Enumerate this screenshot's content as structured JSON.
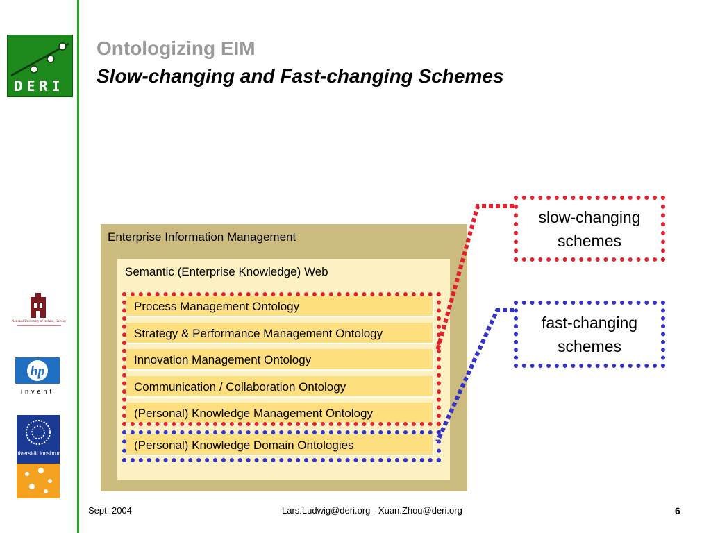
{
  "slide": {
    "title": "Ontologizing EIM",
    "subtitle": "Slow-changing and Fast-changing Schemes"
  },
  "logos": {
    "deri": "DERI",
    "nuig": "National University of Ireland, Galway",
    "hp_word": "invent",
    "hp_mark": "hp",
    "uibk": "universität innsbruck"
  },
  "diagram": {
    "outer_label": "Enterprise Information Management",
    "inner_label": "Semantic (Enterprise Knowledge) Web",
    "ontologies": [
      "Process Management Ontology",
      "Strategy & Performance Management Ontology",
      "Innovation Management Ontology",
      "Communication / Collaboration Ontology",
      "(Personal) Knowledge Management Ontology",
      "(Personal) Knowledge Domain Ontologies"
    ],
    "callouts": {
      "slow_line1": "slow-changing",
      "slow_line2": "schemes",
      "fast_line1": "fast-changing",
      "fast_line2": "schemes"
    }
  },
  "colors": {
    "accent_green": "#1faa1f",
    "slow_frame": "#e3202e",
    "fast_frame": "#3333cc",
    "eim_fill": "#ccbb7f",
    "web_fill": "#fdf0c2",
    "ontology_fill": "#fddf7f"
  },
  "footer": {
    "date": "Sept. 2004",
    "authors": "Lars.Ludwig@deri.org - Xuan.Zhou@deri.org",
    "page": "6"
  }
}
